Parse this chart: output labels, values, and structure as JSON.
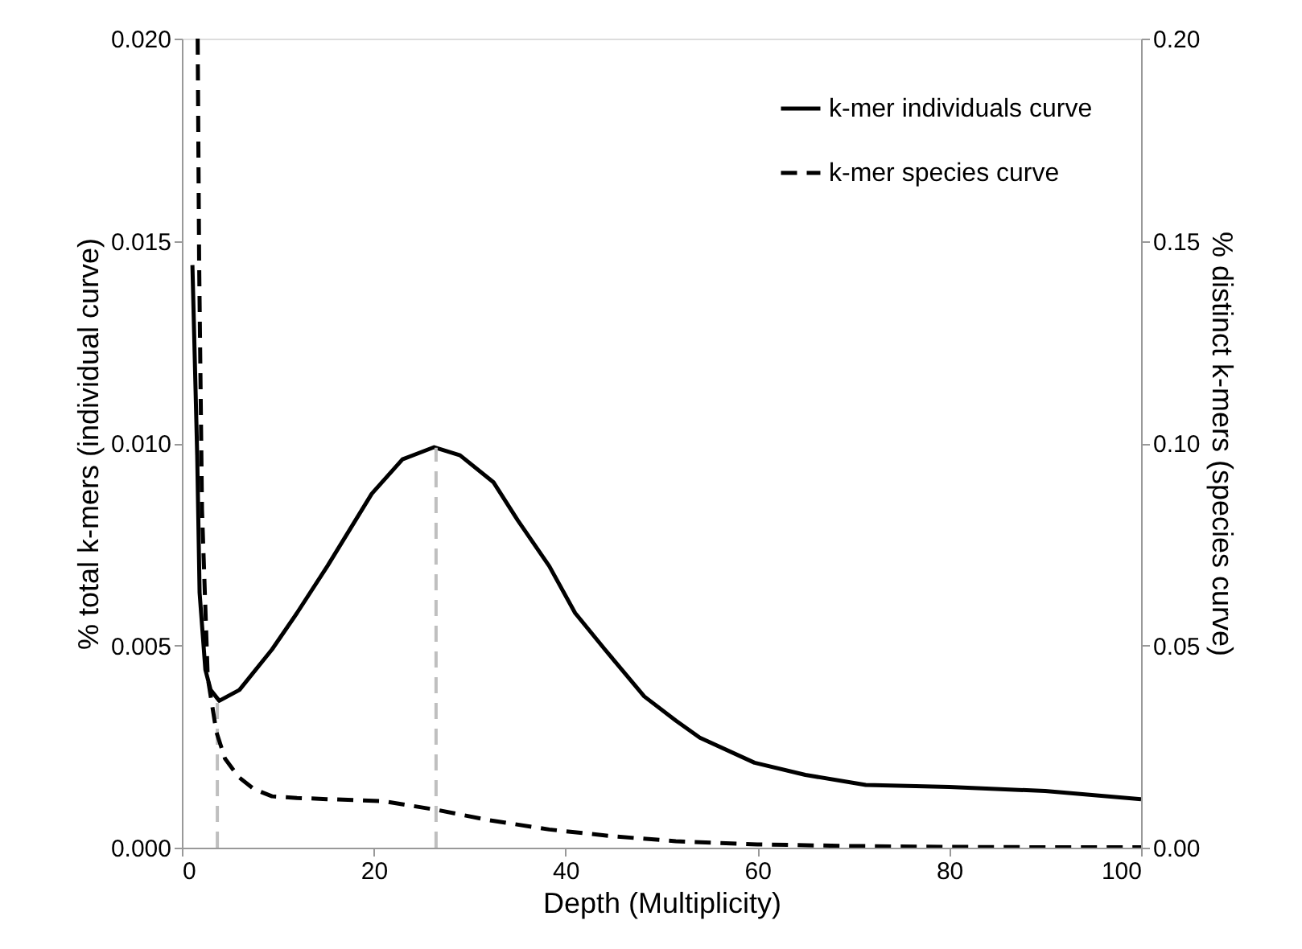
{
  "chart_data": {
    "type": "line",
    "xlabel": "Depth (Multiplicity)",
    "ylabel": "% total k-mers (individual curve)",
    "y2label": "% distinct k-mers (species curve)",
    "xlim": [
      0,
      100
    ],
    "xticks": [
      0,
      20,
      40,
      60,
      80,
      100
    ],
    "ylim": [
      0,
      0.02
    ],
    "yticks": [
      {
        "value": 0,
        "label": "0.000"
      },
      {
        "value": 0.005,
        "label": "0.005"
      },
      {
        "value": 0.01,
        "label": "0.010"
      },
      {
        "value": 0.015,
        "label": "0.015"
      },
      {
        "value": 0.02,
        "label": "0.020"
      }
    ],
    "y2lim": [
      0,
      0.2
    ],
    "y2ticks": [
      {
        "value": 0,
        "label": "0.00"
      },
      {
        "value": 0.05,
        "label": "0.05"
      },
      {
        "value": 0.1,
        "label": "0.10"
      },
      {
        "value": 0.15,
        "label": "0.15"
      },
      {
        "value": 0.2,
        "label": "0.20"
      }
    ],
    "series": [
      {
        "name": "k-mer individuals curve",
        "color": "#000000",
        "line_style": "solid",
        "x": [
          1.1,
          1.6,
          1.85,
          2.45,
          3.0,
          3.9,
          6,
          9.4,
          12,
          15.2,
          19.8,
          23,
          26.3,
          29,
          32.5,
          35,
          38.3,
          41,
          44.1,
          48.2,
          51.5,
          54,
          59.7,
          65,
          71.3,
          80,
          90,
          100
        ],
        "values": [
          0.0144,
          0.0097,
          0.0063,
          0.0044,
          0.0039,
          0.00363,
          0.0039,
          0.0049,
          0.0058,
          0.00697,
          0.00875,
          0.0096,
          0.0099,
          0.0097,
          0.00903,
          0.0081,
          0.00696,
          0.0058,
          0.0049,
          0.00374,
          0.00314,
          0.00272,
          0.0021,
          0.0018,
          0.00155,
          0.0015,
          0.0014,
          0.0012
        ]
      },
      {
        "name": "k-mer species curve",
        "color": "#000000",
        "line_style": "dashed",
        "axis": "y2",
        "x": [
          1.65,
          1.8,
          2.1,
          2.7,
          3.6,
          4.5,
          5.9,
          7.5,
          9.4,
          12,
          15.1,
          21,
          26.7,
          32,
          38.3,
          45,
          51.5,
          60,
          70,
          80,
          90,
          100
        ],
        "values": [
          0.2,
          0.145,
          0.0835,
          0.042,
          0.0286,
          0.022,
          0.0175,
          0.0145,
          0.0127,
          0.0123,
          0.012,
          0.0115,
          0.0093,
          0.0068,
          0.0045,
          0.0028,
          0.0016,
          0.0008,
          0.0004,
          0.0002,
          0.0001,
          0.0001
        ]
      }
    ],
    "ref_lines": [
      {
        "axis": "x",
        "value": 3.7,
        "color": "#bfbfbf",
        "line_style": "dashed"
      },
      {
        "axis": "x",
        "value": 26.5,
        "color": "#bfbfbf",
        "line_style": "dashed"
      }
    ],
    "legend": "top right",
    "grid": false
  }
}
